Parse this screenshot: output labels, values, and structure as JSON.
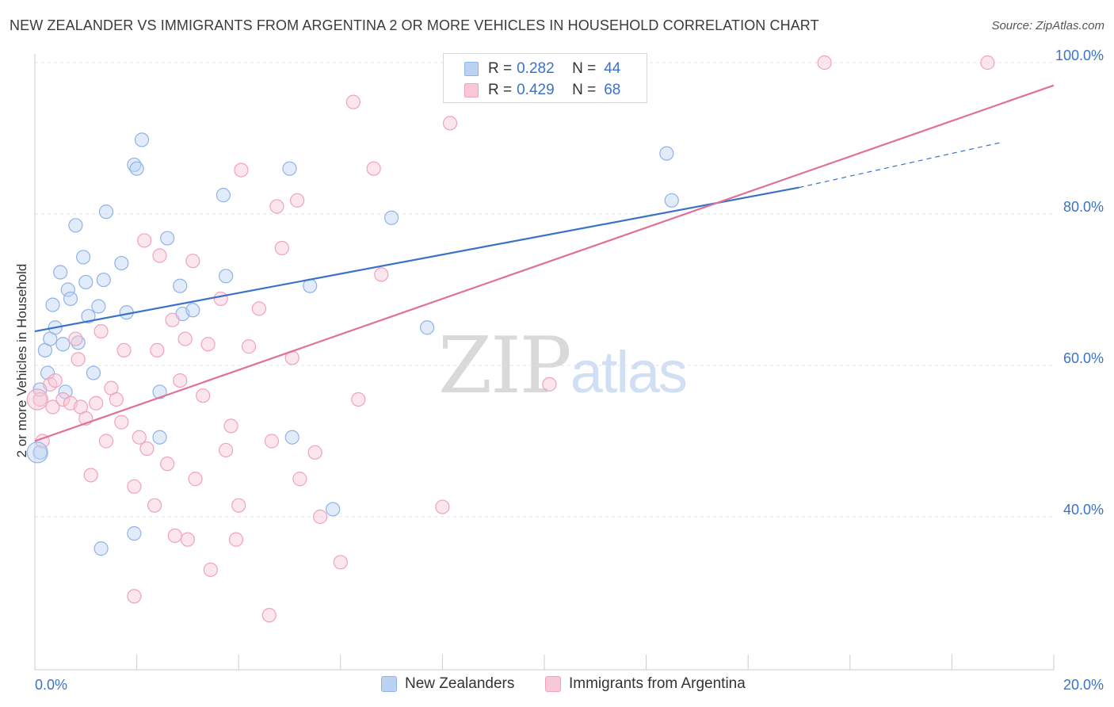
{
  "header": {
    "title": "NEW ZEALANDER VS IMMIGRANTS FROM ARGENTINA 2 OR MORE VEHICLES IN HOUSEHOLD CORRELATION CHART",
    "source": "Source: ZipAtlas.com"
  },
  "watermark": {
    "zip": "ZIP",
    "atlas": "atlas"
  },
  "legend": {
    "r_label": "R =",
    "n_label": "N =",
    "entries": [
      {
        "name": "New Zealanders",
        "r": "0.282",
        "n": "44",
        "color": "#8fb3e8",
        "fill": "#bcd2f3"
      },
      {
        "name": "Immigrants from Argentina",
        "r": "0.429",
        "n": "68",
        "color": "#f1a2ba",
        "fill": "#f8c8d6"
      }
    ]
  },
  "chart_data": {
    "type": "scatter",
    "title": "NEW ZEALANDER VS IMMIGRANTS FROM ARGENTINA 2 OR MORE VEHICLES IN HOUSEHOLD CORRELATION CHART",
    "xlabel": "",
    "ylabel": "2 or more Vehicles in Household",
    "xlim": [
      0,
      20
    ],
    "ylim": [
      20,
      102
    ],
    "x_tick_labels": [
      "0.0%",
      "20.0%"
    ],
    "y_ticks": [
      40,
      60,
      80,
      100
    ],
    "y_tick_labels": [
      "40.0%",
      "60.0%",
      "80.0%",
      "100.0%"
    ],
    "grid": true,
    "legend_position": "top-center",
    "series": [
      {
        "name": "New Zealanders",
        "color": "#3a72c9",
        "trend": {
          "x0": 0,
          "y0": 64.5,
          "x1": 15.0,
          "y1": 83.5,
          "dash_to_x": 19.0,
          "dash_to_y": 89.5
        },
        "points": [
          [
            0.1,
            56.8
          ],
          [
            0.1,
            48.5
          ],
          [
            0.2,
            62.0
          ],
          [
            0.25,
            59.0
          ],
          [
            0.3,
            63.5
          ],
          [
            0.35,
            68.0
          ],
          [
            0.4,
            65.0
          ],
          [
            0.5,
            72.3
          ],
          [
            0.55,
            62.8
          ],
          [
            0.6,
            56.5
          ],
          [
            0.65,
            70.0
          ],
          [
            0.7,
            68.8
          ],
          [
            0.8,
            78.5
          ],
          [
            0.85,
            63.0
          ],
          [
            0.95,
            74.3
          ],
          [
            1.0,
            71.0
          ],
          [
            1.05,
            66.5
          ],
          [
            1.15,
            59.0
          ],
          [
            1.25,
            67.8
          ],
          [
            1.3,
            35.8
          ],
          [
            1.35,
            71.3
          ],
          [
            1.4,
            80.3
          ],
          [
            1.7,
            73.5
          ],
          [
            1.8,
            67.0
          ],
          [
            1.95,
            86.5
          ],
          [
            1.95,
            37.8
          ],
          [
            2.0,
            86.0
          ],
          [
            2.1,
            89.8
          ],
          [
            2.45,
            56.5
          ],
          [
            2.45,
            50.5
          ],
          [
            2.6,
            76.8
          ],
          [
            2.85,
            70.5
          ],
          [
            2.9,
            66.8
          ],
          [
            3.1,
            67.3
          ],
          [
            3.7,
            82.5
          ],
          [
            3.75,
            71.8
          ],
          [
            5.0,
            86.0
          ],
          [
            5.05,
            50.5
          ],
          [
            5.4,
            70.5
          ],
          [
            5.85,
            41.0
          ],
          [
            7.0,
            79.5
          ],
          [
            7.7,
            65.0
          ],
          [
            12.4,
            88.0
          ],
          [
            12.5,
            81.8
          ]
        ]
      },
      {
        "name": "Immigrants from Argentina",
        "color": "#e0709a",
        "trend": {
          "x0": 0,
          "y0": 50.0,
          "x1": 20.0,
          "y1": 97.0
        },
        "points": [
          [
            0.1,
            55.5
          ],
          [
            0.15,
            50.0
          ],
          [
            0.3,
            57.5
          ],
          [
            0.35,
            54.5
          ],
          [
            0.4,
            58.0
          ],
          [
            0.55,
            55.5
          ],
          [
            0.7,
            55.0
          ],
          [
            0.8,
            63.5
          ],
          [
            0.85,
            60.8
          ],
          [
            0.9,
            54.5
          ],
          [
            1.0,
            53.0
          ],
          [
            1.1,
            45.5
          ],
          [
            1.2,
            55.0
          ],
          [
            1.3,
            64.5
          ],
          [
            1.4,
            50.0
          ],
          [
            1.5,
            57.0
          ],
          [
            1.6,
            55.5
          ],
          [
            1.7,
            52.5
          ],
          [
            1.75,
            62.0
          ],
          [
            1.95,
            44.0
          ],
          [
            1.95,
            29.5
          ],
          [
            2.05,
            50.5
          ],
          [
            2.15,
            76.5
          ],
          [
            2.2,
            49.0
          ],
          [
            2.35,
            41.5
          ],
          [
            2.4,
            62.0
          ],
          [
            2.45,
            74.5
          ],
          [
            2.6,
            47.0
          ],
          [
            2.7,
            66.0
          ],
          [
            2.75,
            37.5
          ],
          [
            2.85,
            58.0
          ],
          [
            2.95,
            63.5
          ],
          [
            3.0,
            37.0
          ],
          [
            3.1,
            73.8
          ],
          [
            3.15,
            45.0
          ],
          [
            3.3,
            56.0
          ],
          [
            3.4,
            62.8
          ],
          [
            3.45,
            33.0
          ],
          [
            3.65,
            68.8
          ],
          [
            3.75,
            48.8
          ],
          [
            3.85,
            52.0
          ],
          [
            3.95,
            37.0
          ],
          [
            4.0,
            41.5
          ],
          [
            4.05,
            85.8
          ],
          [
            4.2,
            62.5
          ],
          [
            4.4,
            67.5
          ],
          [
            4.6,
            27.0
          ],
          [
            4.65,
            50.0
          ],
          [
            4.75,
            81.0
          ],
          [
            4.85,
            75.5
          ],
          [
            5.05,
            61.0
          ],
          [
            5.15,
            81.8
          ],
          [
            5.2,
            45.0
          ],
          [
            5.5,
            48.5
          ],
          [
            5.6,
            40.0
          ],
          [
            6.0,
            34.0
          ],
          [
            6.25,
            94.8
          ],
          [
            6.35,
            55.5
          ],
          [
            6.65,
            86.0
          ],
          [
            6.8,
            72.0
          ],
          [
            8.0,
            41.3
          ],
          [
            8.15,
            92.0
          ],
          [
            9.65,
            100.0
          ],
          [
            10.3,
            100.0
          ],
          [
            10.8,
            100.0
          ],
          [
            10.1,
            57.5
          ],
          [
            15.5,
            100.0
          ],
          [
            18.7,
            100.0
          ]
        ]
      }
    ]
  }
}
